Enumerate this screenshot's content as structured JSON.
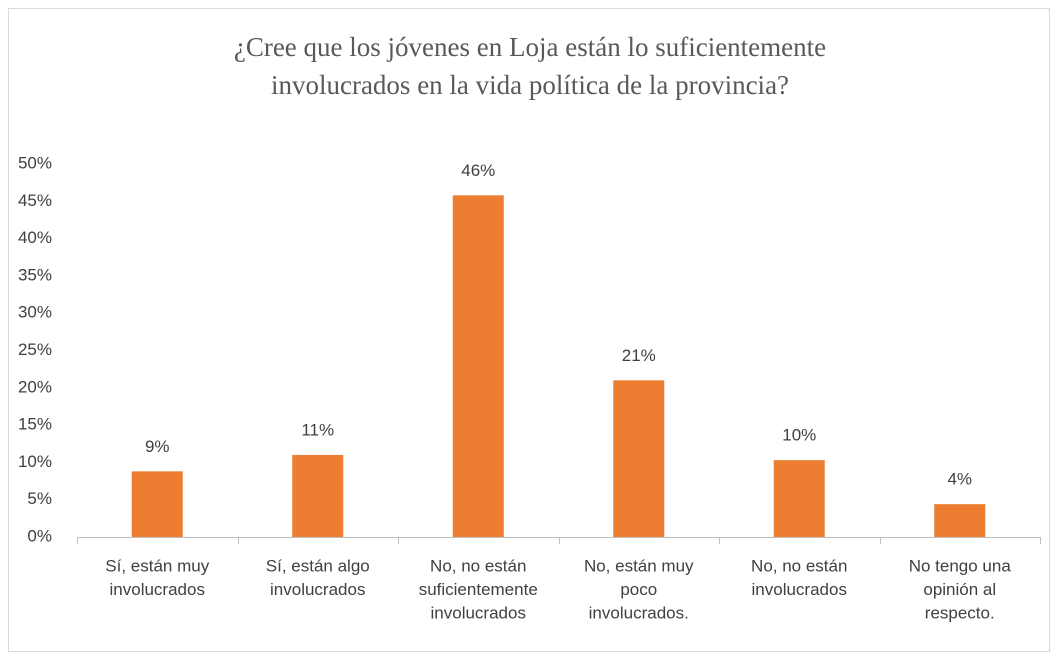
{
  "chart_data": {
    "type": "bar",
    "title": [
      "¿Cree que los jóvenes en Loja están lo suficientemente",
      "involucrados en la vida política de la provincia?"
    ],
    "categories": [
      [
        "Sí, están muy",
        "involucrados"
      ],
      [
        "Sí, están algo",
        "involucrados"
      ],
      [
        "No, no están",
        "suficientemente",
        "involucrados"
      ],
      [
        "No, están muy",
        "poco",
        "involucrados."
      ],
      [
        "No, no están",
        "involucrados"
      ],
      [
        "No tengo una",
        "opinión al",
        "respecto."
      ]
    ],
    "values": [
      8.8,
      11.0,
      45.8,
      21.0,
      10.3,
      4.4
    ],
    "value_labels": [
      "9%",
      "11%",
      "46%",
      "21%",
      "10%",
      "4%"
    ],
    "color": "#ed7d31",
    "ylim": [
      0,
      50
    ],
    "yticks": [
      {
        "value": 0,
        "label": "0%"
      },
      {
        "value": 5,
        "label": "5%"
      },
      {
        "value": 10,
        "label": "10%"
      },
      {
        "value": 15,
        "label": "15%"
      },
      {
        "value": 20,
        "label": "20%"
      },
      {
        "value": 25,
        "label": "25%"
      },
      {
        "value": 30,
        "label": "30%"
      },
      {
        "value": 35,
        "label": "35%"
      },
      {
        "value": 40,
        "label": "40%"
      },
      {
        "value": 45,
        "label": "45%"
      },
      {
        "value": 50,
        "label": "50%"
      }
    ],
    "grid": false
  }
}
